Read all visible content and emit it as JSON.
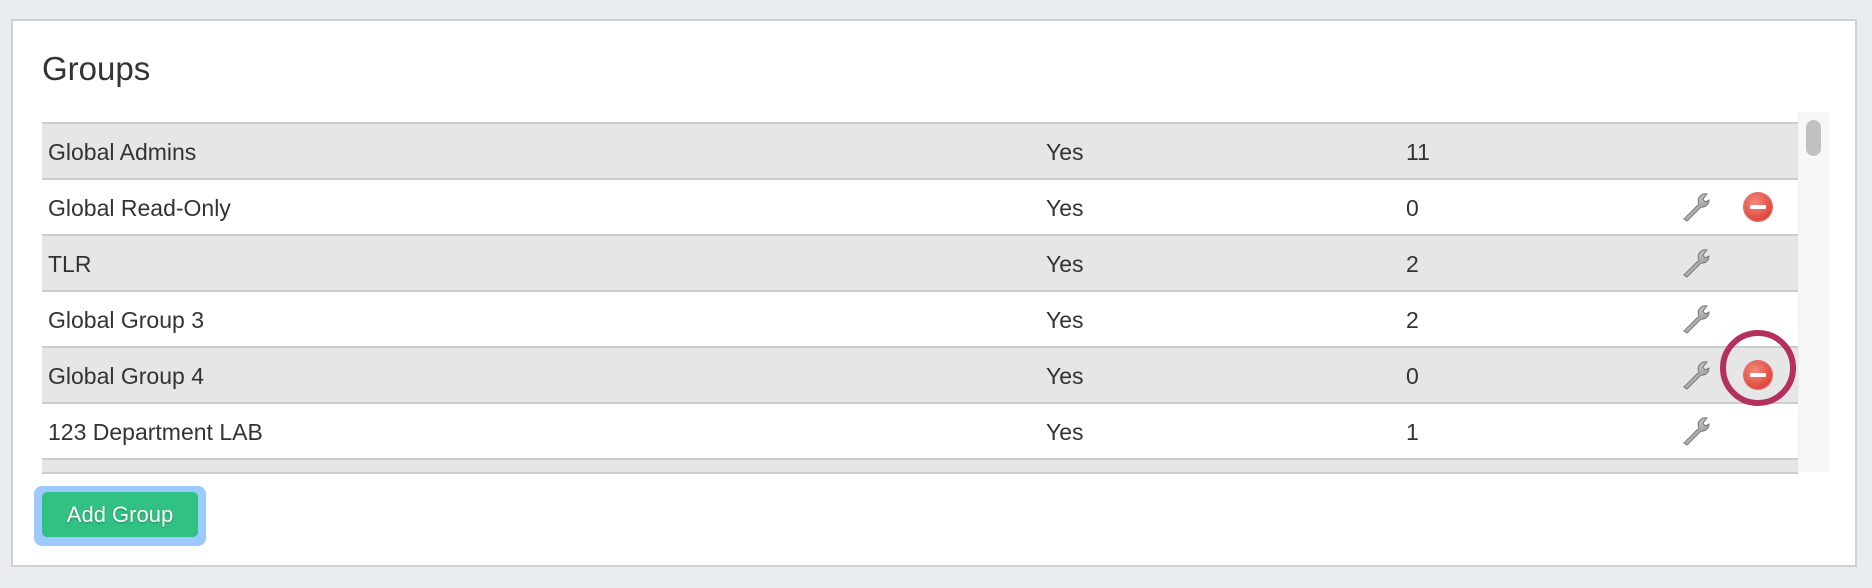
{
  "title": "Groups",
  "rows": [
    {
      "name": "Global Admins",
      "global": "Yes",
      "count": "11",
      "edit": false,
      "remove": false
    },
    {
      "name": "Global Read-Only",
      "global": "Yes",
      "count": "0",
      "edit": true,
      "remove": true
    },
    {
      "name": "TLR",
      "global": "Yes",
      "count": "2",
      "edit": true,
      "remove": false
    },
    {
      "name": "Global Group 3",
      "global": "Yes",
      "count": "2",
      "edit": true,
      "remove": false
    },
    {
      "name": "Global Group 4",
      "global": "Yes",
      "count": "0",
      "edit": true,
      "remove": true,
      "highlighted": true
    },
    {
      "name": "123 Department LAB",
      "global": "Yes",
      "count": "1",
      "edit": true,
      "remove": false
    },
    {
      "name": "",
      "global": "",
      "count": "",
      "edit": true,
      "remove": true
    }
  ],
  "add_button": "Add Group",
  "colors": {
    "accent": "#31c283",
    "highlight_ring": "#b4305e",
    "remove": "#e0483c"
  }
}
